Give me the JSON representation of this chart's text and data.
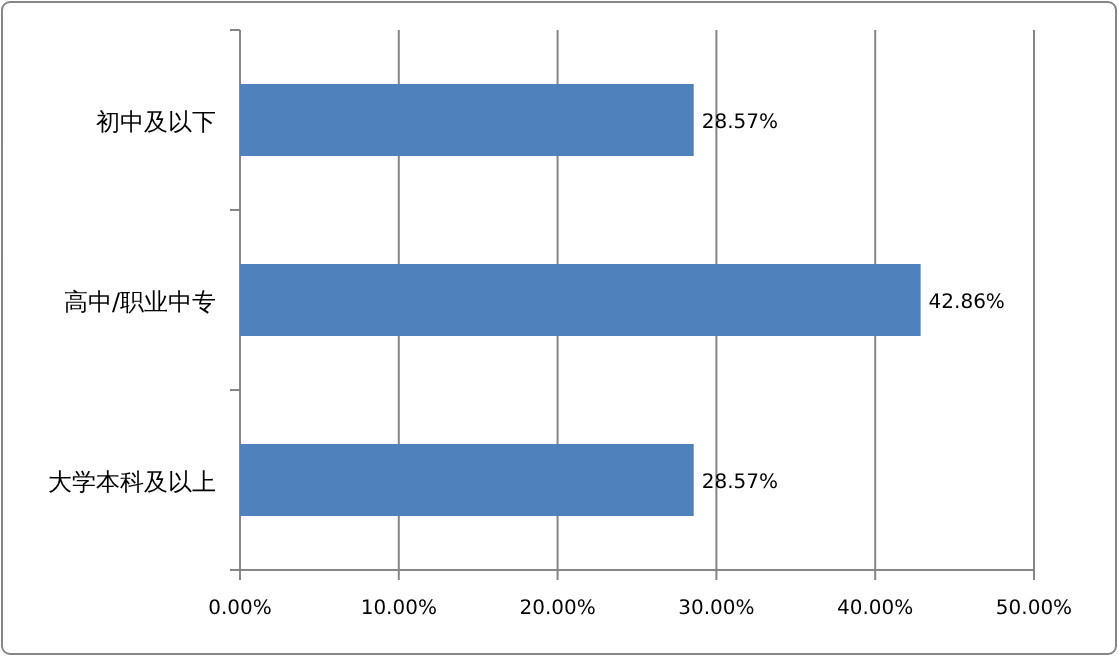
{
  "chart_data": {
    "type": "bar",
    "orientation": "horizontal",
    "categories": [
      "初中及以下",
      "高中/职业中专",
      "大学本科及以上"
    ],
    "values": [
      28.57,
      42.86,
      28.57
    ],
    "value_labels": [
      "28.57%",
      "42.86%",
      "28.57%"
    ],
    "color": "#4f81bd",
    "xlim": [
      0,
      50
    ],
    "xticks": [
      {
        "value": 0,
        "label": "0.00%"
      },
      {
        "value": 10,
        "label": "10.00%"
      },
      {
        "value": 20,
        "label": "20.00%"
      },
      {
        "value": 30,
        "label": "30.00%"
      },
      {
        "value": 40,
        "label": "40.00%"
      },
      {
        "value": 50,
        "label": "50.00%"
      }
    ],
    "grid": "x"
  }
}
